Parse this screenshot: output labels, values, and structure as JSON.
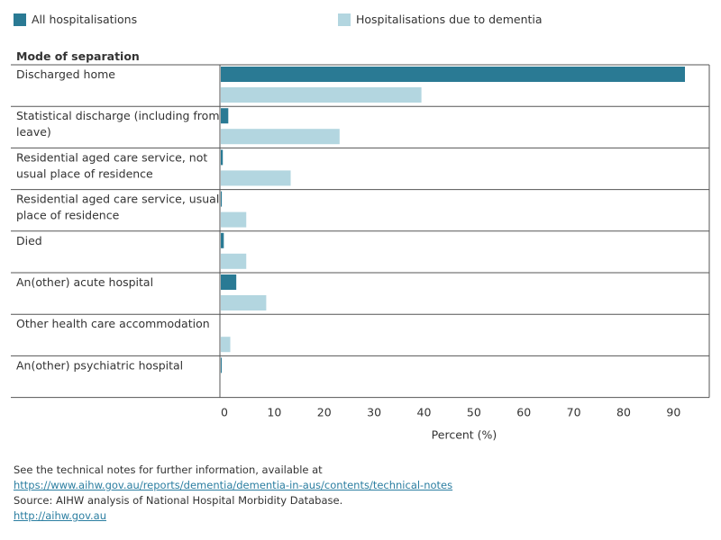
{
  "colors": {
    "all": "#2a7a94",
    "dementia": "#b3d6e0",
    "grid": "#555555",
    "text": "#333333"
  },
  "legend": [
    {
      "label": "All hospitalisations",
      "color": "#2a7a94"
    },
    {
      "label": "Hospitalisations due to dementia",
      "color": "#b3d6e0"
    }
  ],
  "chart_data": {
    "type": "bar",
    "orientation": "horizontal",
    "row_header": "Mode of separation",
    "categories": [
      [
        "Discharged home"
      ],
      [
        "Statistical discharge (including from",
        "leave)"
      ],
      [
        "Residential aged care service, not",
        "usual place of residence"
      ],
      [
        "Residential aged care service, usual",
        "place of residence"
      ],
      [
        "Died"
      ],
      [
        "An(other) acute hospital"
      ],
      [
        "Other health care accommodation"
      ],
      [
        "An(other) psychiatric hospital"
      ]
    ],
    "series": [
      {
        "name": "All hospitalisations",
        "values": [
          93.0,
          1.5,
          0.4,
          0.2,
          0.6,
          3.1,
          0.0,
          0.1
        ]
      },
      {
        "name": "Hospitalisations due to dementia",
        "values": [
          40.2,
          23.8,
          14.0,
          5.1,
          5.1,
          9.1,
          1.9,
          0.0
        ]
      }
    ],
    "xlabel": "Percent (%)",
    "xlim": [
      0,
      98
    ],
    "xticks": [
      0,
      10,
      20,
      30,
      40,
      50,
      60,
      70,
      80,
      90
    ]
  },
  "footer": {
    "note": "See the technical notes for further information, available at",
    "note_link": "https://www.aihw.gov.au/reports/dementia/dementia-in-aus/contents/technical-notes",
    "source": "Source: AIHW analysis of National Hospital Morbidity Database.",
    "source_link": "http://aihw.gov.au"
  }
}
